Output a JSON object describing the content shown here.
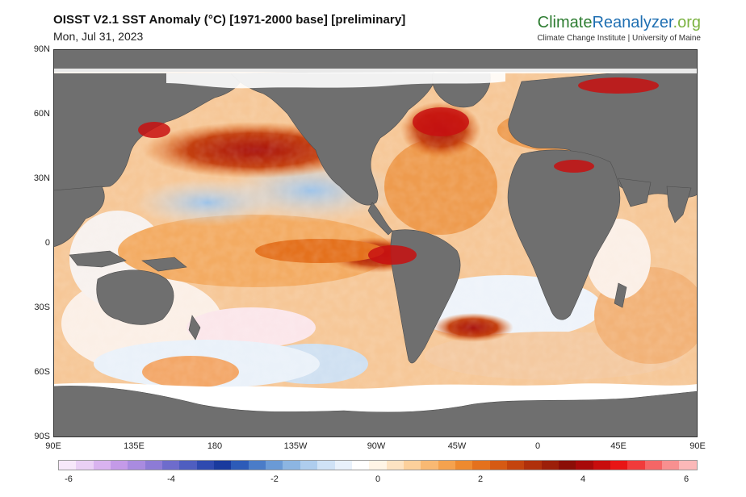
{
  "header": {
    "title": "OISST V2.1 SST Anomaly (°C) [1971-2000 base] [preliminary]",
    "date": "Mon, Jul 31, 2023"
  },
  "brand": {
    "name_part1": "Climate",
    "name_part2": "Reanalyzer",
    "name_part3": ".org",
    "subtitle": "Climate Change Institute | University of Maine"
  },
  "map": {
    "lat_labels": [
      "90N",
      "60N",
      "30N",
      "0",
      "30S",
      "60S",
      "90S"
    ],
    "lon_labels": [
      "90E",
      "135E",
      "180",
      "135W",
      "90W",
      "45W",
      "0",
      "45E",
      "90E"
    ],
    "land_color": "#6f6f6f",
    "ice_color": "#ffffff"
  },
  "colorbar": {
    "ticks": [
      "-6",
      "-4",
      "-2",
      "0",
      "2",
      "4",
      "6"
    ],
    "colors": [
      "#f7e8fa",
      "#ead0f5",
      "#d9b3ef",
      "#c49ae8",
      "#a98be0",
      "#8d7bd6",
      "#6e6ccc",
      "#4f5ec0",
      "#2f4ab0",
      "#1a3a9e",
      "#2d5bb8",
      "#4a7cc8",
      "#6a9ad6",
      "#8cb5e2",
      "#aecdee",
      "#cfe2f6",
      "#e8f1fb",
      "#ffffff",
      "#fff5e6",
      "#fde3c2",
      "#fcd09b",
      "#f9b973",
      "#f5a24e",
      "#ee8a2f",
      "#e4711d",
      "#d65a14",
      "#c4440e",
      "#b0300b",
      "#9c1f09",
      "#8b0e07",
      "#a80a0a",
      "#c80d0d",
      "#e81515",
      "#f13b3b",
      "#f56666",
      "#f89090",
      "#fbb8b8"
    ]
  }
}
